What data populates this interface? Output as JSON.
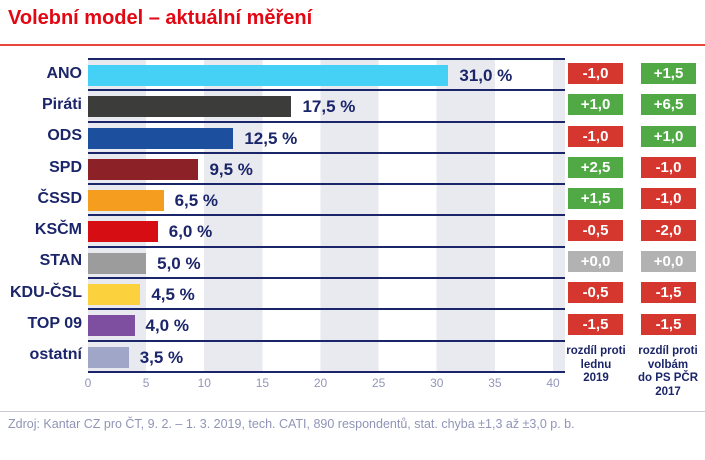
{
  "title": "Volební model – aktuální měření",
  "footer": "Zdroj: Kantar CZ pro ČT, 9. 2. – 1. 3. 2019, tech. CATI, 890 respondentů, stat. chyba ±1,3 až ±3,0 p. b.",
  "colors": {
    "title_red": "#e30613",
    "underline_red": "#e8453a",
    "navy": "#1b2569",
    "badge_red": "#d5362e",
    "badge_green": "#50a945",
    "badge_gray": "#b2b2b2",
    "stripe_gray": "#e9e9f0",
    "axis_text": "#9396b8",
    "footer_text": "#9094b6",
    "footer_line": "#c9cbdb"
  },
  "diff_columns": {
    "col1_header": "rozdíl proti\nlednu\n2019",
    "col2_header": "rozdíl proti\nvolbám\ndo PS PČR\n2017"
  },
  "chart_data": {
    "type": "bar",
    "orientation": "horizontal",
    "title": "Volební model – aktuální měření",
    "xlabel": "",
    "ylabel": "",
    "xlim": [
      0,
      40
    ],
    "x_ticks": [
      0,
      5,
      10,
      15,
      20,
      25,
      30,
      35,
      40
    ],
    "x_tick_labels": [
      "0",
      "5",
      "10",
      "15",
      "20",
      "25",
      "30",
      "35",
      "40"
    ],
    "grid": "vertical-stripes-every-5",
    "categories": [
      "ANO",
      "Piráti",
      "ODS",
      "SPD",
      "ČSSD",
      "KSČM",
      "STAN",
      "KDU-ČSL",
      "TOP 09",
      "ostatní"
    ],
    "values": [
      31.0,
      17.5,
      12.5,
      9.5,
      6.5,
      6.0,
      5.0,
      4.5,
      4.0,
      3.5
    ],
    "value_labels": [
      "31,0 %",
      "17,5 %",
      "12,5 %",
      "9,5 %",
      "6,5 %",
      "6,0 %",
      "5,0 %",
      "4,5 %",
      "4,0 %",
      "3,5 %"
    ],
    "bar_colors": [
      "#45d1f5",
      "#3c3c3b",
      "#1d4f9f",
      "#8c2127",
      "#f49d1e",
      "#d60e13",
      "#9c9c9c",
      "#fbd23e",
      "#7e4fa0",
      "#a0a6c8"
    ],
    "series": [
      {
        "name": "rozdíl proti lednu 2019",
        "badges": [
          {
            "text": "-1,0",
            "color": "red"
          },
          {
            "text": "+1,0",
            "color": "green"
          },
          {
            "text": "-1,0",
            "color": "red"
          },
          {
            "text": "+2,5",
            "color": "green"
          },
          {
            "text": "+1,5",
            "color": "green"
          },
          {
            "text": "-0,5",
            "color": "red"
          },
          {
            "text": "+0,0",
            "color": "gray"
          },
          {
            "text": "-0,5",
            "color": "red"
          },
          {
            "text": "-1,5",
            "color": "red"
          },
          null
        ]
      },
      {
        "name": "rozdíl proti volbám do PS PČR 2017",
        "badges": [
          {
            "text": "+1,5",
            "color": "green"
          },
          {
            "text": "+6,5",
            "color": "green"
          },
          {
            "text": "+1,0",
            "color": "green"
          },
          {
            "text": "-1,0",
            "color": "red"
          },
          {
            "text": "-1,0",
            "color": "red"
          },
          {
            "text": "-2,0",
            "color": "red"
          },
          {
            "text": "+0,0",
            "color": "gray"
          },
          {
            "text": "-1,5",
            "color": "red"
          },
          {
            "text": "-1,5",
            "color": "red"
          },
          null
        ]
      }
    ]
  }
}
